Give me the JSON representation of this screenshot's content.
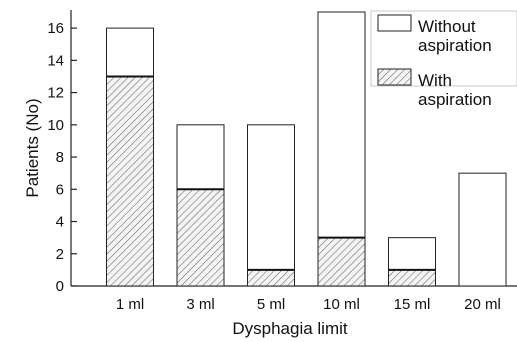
{
  "chart_data": {
    "type": "bar",
    "stacked": true,
    "categories": [
      "1 ml",
      "3 ml",
      "5 ml",
      "10 ml",
      "15 ml",
      "20 ml"
    ],
    "series": [
      {
        "name": "With aspiration",
        "values": [
          13,
          6,
          1,
          3,
          1,
          0
        ],
        "pattern": "hatched"
      },
      {
        "name": "Without aspiration",
        "values": [
          3,
          4,
          9,
          14,
          2,
          7
        ],
        "pattern": "plain"
      }
    ],
    "title": "",
    "xlabel": "Dysphagia limit",
    "ylabel": "Patients (No)",
    "ylim": [
      0,
      17
    ],
    "yticks": [
      0,
      2,
      4,
      6,
      8,
      10,
      12,
      14,
      16
    ],
    "grid": false,
    "legend": {
      "placement": "top-right",
      "entries": [
        {
          "line1": "Without",
          "line2": "aspiration",
          "series": "Without aspiration"
        },
        {
          "line1": "With",
          "line2": "aspiration",
          "series": "With aspiration"
        }
      ]
    },
    "colors": {
      "stroke": "#222222",
      "hatch": "#555555",
      "fill": "#ffffff"
    }
  }
}
